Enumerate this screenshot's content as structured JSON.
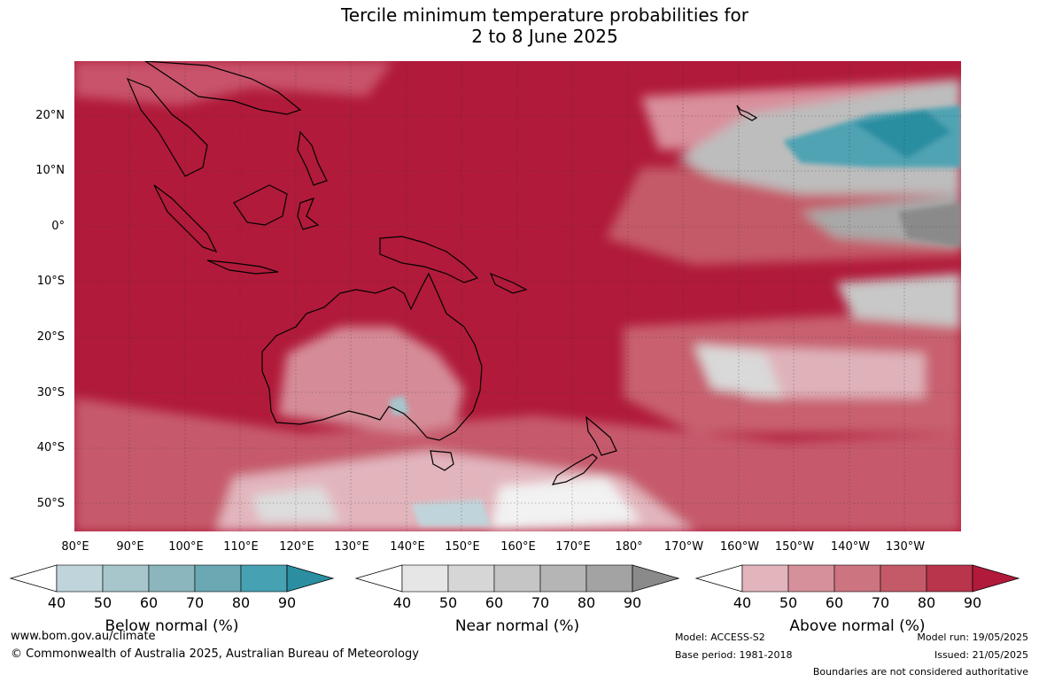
{
  "title_line1": "Tercile minimum temperature probabilities for",
  "title_line2": "2 to 8 June 2025",
  "lat_labels": [
    "20°N",
    "10°N",
    "0°",
    "10°S",
    "20°S",
    "30°S",
    "40°S",
    "50°S"
  ],
  "lon_labels": [
    "80°E",
    "90°E",
    "100°E",
    "110°E",
    "120°E",
    "130°E",
    "140°E",
    "150°E",
    "160°E",
    "170°E",
    "180°",
    "170°W",
    "160°W",
    "150°W",
    "140°W",
    "130°W"
  ],
  "colorbars": [
    {
      "title": "Below normal (%)",
      "ticks": [
        "40",
        "50",
        "60",
        "70",
        "80",
        "90"
      ],
      "colors": [
        "#bfd5db",
        "#a6c6cc",
        "#8bb6bd",
        "#6aa8b4",
        "#46a1b2",
        "#2b8ea1"
      ]
    },
    {
      "title": "Near normal (%)",
      "ticks": [
        "40",
        "50",
        "60",
        "70",
        "80",
        "90"
      ],
      "colors": [
        "#e6e6e6",
        "#d6d6d6",
        "#c5c5c5",
        "#b5b5b5",
        "#a3a3a3",
        "#8a8a8a"
      ]
    },
    {
      "title": "Above normal (%)",
      "ticks": [
        "40",
        "50",
        "60",
        "70",
        "80",
        "90"
      ],
      "colors": [
        "#e2b5bd",
        "#d6909b",
        "#cc7480",
        "#c45a68",
        "#b8354b",
        "#b11a3a"
      ]
    }
  ],
  "footer": {
    "website": "www.bom.gov.au/climate",
    "copyright": "© Commonwealth of Australia 2025, Australian Bureau of Meteorology",
    "model": "Model: ACCESS-S2",
    "base_period": "Base period: 1981-2018",
    "model_run": "Model run: 19/05/2025",
    "issued": "Issued: 21/05/2025",
    "boundaries": "Boundaries are not considered authoritative"
  },
  "colors": {
    "above_dominant": "#b11a3a",
    "coastline": "#000000",
    "grid": "#333333"
  }
}
